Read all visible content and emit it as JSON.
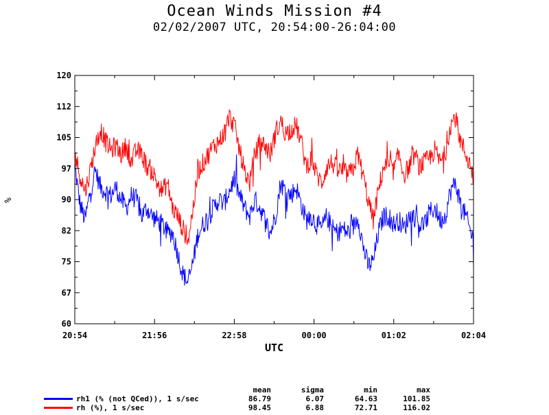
{
  "chart_data": {
    "type": "line",
    "title": "Ocean Winds Mission #4",
    "subtitle": "02/02/2007  UTC, 20:54:00-26:04:00",
    "xlabel": "UTC",
    "ylabel": "%",
    "xlim": [
      "20:54",
      "02:04"
    ],
    "ylim": [
      60,
      120
    ],
    "x_ticks": [
      "20:54",
      "21:56",
      "22:58",
      "00:00",
      "01:02",
      "02:04"
    ],
    "y_ticks": [
      "60",
      "67",
      "75",
      "82",
      "90",
      "97",
      "105",
      "112",
      "120"
    ],
    "grid": false,
    "legend_position": "bottom-left",
    "series": [
      {
        "name": "rh1 (% (not QCed)), 1 s/sec",
        "color": "#0000ff",
        "x": [
          "20:54",
          "20:58",
          "21:02",
          "21:06",
          "21:10",
          "21:14",
          "21:18",
          "21:22",
          "21:26",
          "21:30",
          "21:34",
          "21:38",
          "21:42",
          "21:46",
          "21:50",
          "21:54",
          "21:58",
          "22:02",
          "22:06",
          "22:10",
          "22:14",
          "22:18",
          "22:22",
          "22:26",
          "22:30",
          "22:34",
          "22:38",
          "22:42",
          "22:46",
          "22:50",
          "22:54",
          "22:58",
          "23:02",
          "23:06",
          "23:10",
          "23:14",
          "23:18",
          "23:22",
          "23:26",
          "23:30",
          "23:34",
          "23:38",
          "23:42",
          "23:46",
          "23:50",
          "23:54",
          "23:58",
          "00:02",
          "00:06",
          "00:10",
          "00:14",
          "00:18",
          "00:22",
          "00:26",
          "00:30",
          "00:34",
          "00:38",
          "00:42",
          "00:46",
          "00:50",
          "00:54",
          "00:58",
          "01:02",
          "01:06",
          "01:10",
          "01:14",
          "01:18",
          "01:22",
          "01:26",
          "01:30",
          "01:34",
          "01:38",
          "01:42",
          "01:46",
          "01:50",
          "01:54",
          "01:58",
          "02:02",
          "02:04"
        ],
        "values": [
          98,
          89,
          85,
          92,
          97,
          93,
          92,
          91,
          93,
          90,
          88,
          91,
          90,
          86,
          88,
          86,
          85,
          84,
          82,
          82,
          77,
          72,
          70,
          75,
          82,
          84,
          86,
          88,
          90,
          89,
          92,
          95,
          91,
          88,
          86,
          90,
          88,
          85,
          82,
          86,
          94,
          92,
          91,
          93,
          89,
          85,
          86,
          84,
          83,
          86,
          83,
          82,
          83,
          82,
          83,
          86,
          79,
          74,
          75,
          82,
          86,
          86,
          84,
          85,
          83,
          86,
          86,
          84,
          84,
          87,
          88,
          85,
          86,
          92,
          94,
          89,
          86,
          82,
          80
        ]
      },
      {
        "name": "rh (%), 1 s/sec",
        "color": "#ff0000",
        "x": [
          "20:54",
          "20:58",
          "21:02",
          "21:06",
          "21:10",
          "21:14",
          "21:18",
          "21:22",
          "21:26",
          "21:30",
          "21:34",
          "21:38",
          "21:42",
          "21:46",
          "21:50",
          "21:54",
          "21:58",
          "22:02",
          "22:06",
          "22:10",
          "22:14",
          "22:18",
          "22:22",
          "22:26",
          "22:30",
          "22:34",
          "22:38",
          "22:42",
          "22:46",
          "22:50",
          "22:54",
          "22:58",
          "23:02",
          "23:06",
          "23:10",
          "23:14",
          "23:18",
          "23:22",
          "23:26",
          "23:30",
          "23:34",
          "23:38",
          "23:42",
          "23:46",
          "23:50",
          "23:54",
          "23:58",
          "00:02",
          "00:06",
          "00:10",
          "00:14",
          "00:18",
          "00:22",
          "00:26",
          "00:30",
          "00:34",
          "00:38",
          "00:42",
          "00:46",
          "00:50",
          "00:54",
          "00:58",
          "01:02",
          "01:06",
          "01:10",
          "01:14",
          "01:18",
          "01:22",
          "01:26",
          "01:30",
          "01:34",
          "01:38",
          "01:42",
          "01:46",
          "01:50",
          "01:54",
          "01:58",
          "02:02",
          "02:04"
        ],
        "values": [
          101,
          96,
          92,
          97,
          103,
          107,
          104,
          102,
          103,
          101,
          103,
          99,
          102,
          101,
          98,
          97,
          94,
          92,
          94,
          88,
          86,
          83,
          80,
          88,
          97,
          99,
          101,
          103,
          104,
          106,
          110,
          108,
          102,
          97,
          94,
          101,
          104,
          103,
          101,
          106,
          109,
          106,
          107,
          108,
          104,
          98,
          100,
          96,
          94,
          98,
          99,
          97,
          97,
          96,
          97,
          101,
          96,
          90,
          85,
          92,
          98,
          98,
          97,
          101,
          96,
          98,
          101,
          98,
          99,
          100,
          102,
          99,
          101,
          108,
          110,
          104,
          101,
          98,
          95
        ]
      }
    ],
    "stats": {
      "headers": [
        "mean",
        "sigma",
        "min",
        "max"
      ],
      "rows": [
        [
          "86.79",
          "6.07",
          "64.63",
          "101.85"
        ],
        [
          "98.45",
          "6.88",
          "72.71",
          "116.02"
        ]
      ]
    }
  }
}
